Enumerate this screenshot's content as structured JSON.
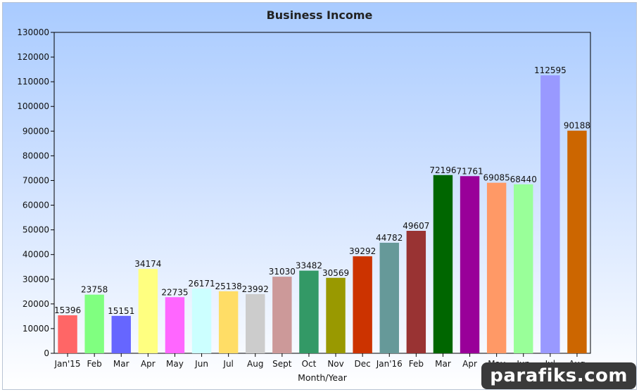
{
  "chart_data": {
    "type": "bar",
    "title": "Business Income",
    "xlabel": "Month/Year",
    "ylabel": "",
    "ylim": [
      0,
      130000
    ],
    "ytick_step": 10000,
    "grid": false,
    "legend": "none",
    "categories": [
      "Jan'15",
      "Feb",
      "Mar",
      "Apr",
      "May",
      "Jun",
      "Jul",
      "Aug",
      "Sept",
      "Oct",
      "Nov",
      "Dec",
      "Jan'16",
      "Feb",
      "Mar",
      "Apr",
      "May",
      "Jun",
      "Jul",
      "Aug"
    ],
    "values": [
      15396,
      23758,
      15151,
      34174,
      22735,
      26171,
      25138,
      23992,
      31030,
      33482,
      30569,
      39292,
      44782,
      49607,
      72196,
      71761,
      69085,
      68440,
      112595,
      90188
    ],
    "colors": [
      "#ff6666",
      "#80ff80",
      "#6666ff",
      "#ffff80",
      "#ff66ff",
      "#ccffff",
      "#ffdd66",
      "#cccccc",
      "#cc9999",
      "#339966",
      "#999900",
      "#cc3300",
      "#669999",
      "#993333",
      "#006600",
      "#990099",
      "#ff9966",
      "#99ff99",
      "#9999ff",
      "#cc6600"
    ]
  },
  "watermark": "parafiks.com"
}
